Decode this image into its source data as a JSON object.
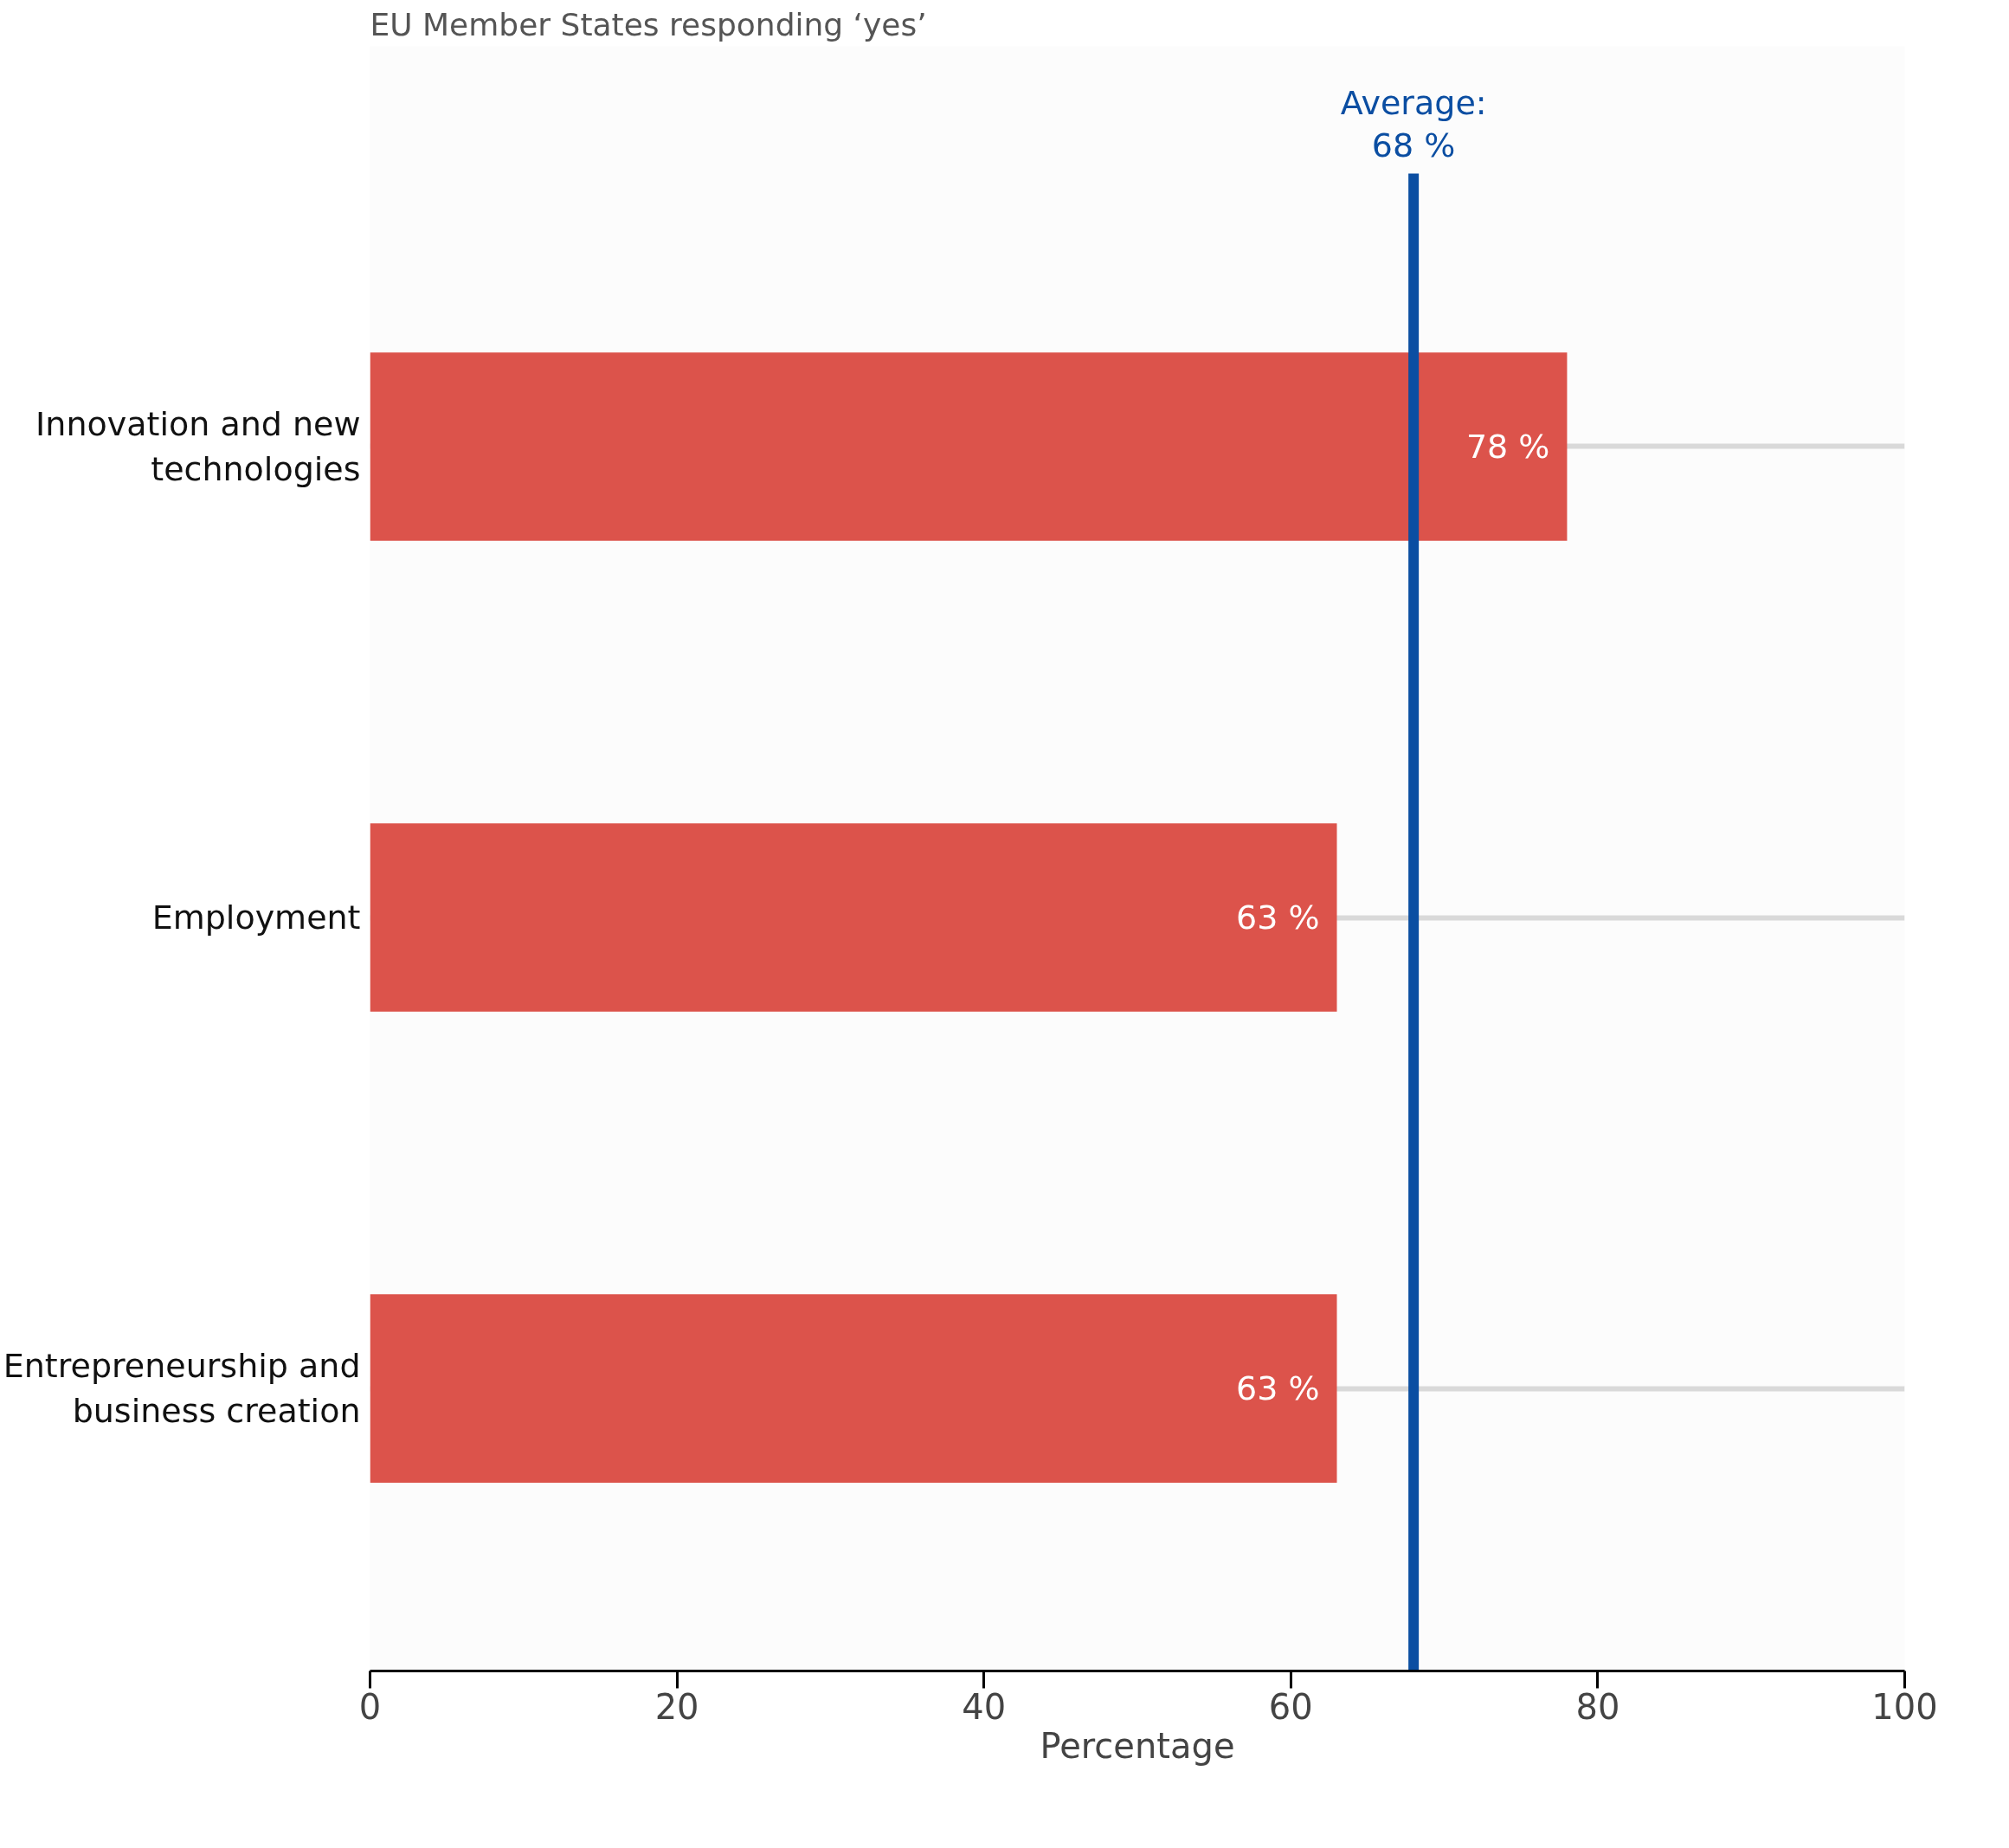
{
  "chart_data": {
    "type": "bar",
    "orientation": "horizontal",
    "subtitle": "EU Member States responding ‘yes’",
    "xlabel": "Percentage",
    "categories": [
      "Innovation and new technologies",
      "Employment",
      "Entrepreneurship and business creation"
    ],
    "values": [
      78,
      63,
      63
    ],
    "color": "#dc534b",
    "value_labels": [
      "78 %",
      "63 %",
      "63 %"
    ],
    "xlim": [
      0,
      100
    ],
    "xticks": [
      0,
      20,
      40,
      60,
      80,
      100
    ],
    "grid": "y",
    "ref_lines": [
      {
        "axis": "x",
        "value": 68,
        "label": "Average:\n68 %",
        "color": "#0b4ea2"
      }
    ]
  }
}
